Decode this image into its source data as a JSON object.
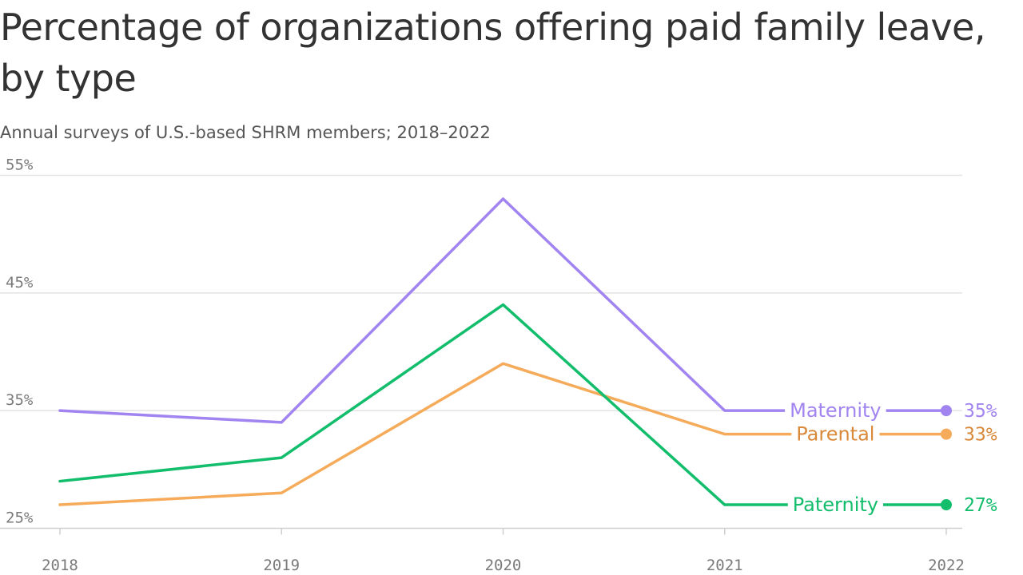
{
  "chart_data": {
    "type": "line",
    "title": "Percentage of organizations offering paid family leave, by type",
    "subtitle": "Annual surveys of U.S.-based SHRM members; 2018–2022",
    "xlabel": "",
    "ylabel": "",
    "categories": [
      "2018",
      "2019",
      "2020",
      "2021",
      "2022"
    ],
    "ylim": [
      25,
      55
    ],
    "yticks": [
      25,
      35,
      45,
      55
    ],
    "ytick_labels": [
      "25%",
      "35%",
      "45%",
      "55%"
    ],
    "grid": true,
    "series": [
      {
        "name": "Maternity",
        "color": "#a184f0",
        "label_color": "#a184f0",
        "values": [
          35,
          34,
          53,
          35,
          35
        ],
        "end_label": "35%"
      },
      {
        "name": "Parental",
        "color": "#f5ab5a",
        "label_color": "#d9893a",
        "values": [
          27,
          28,
          39,
          33,
          33
        ],
        "end_label": "33%"
      },
      {
        "name": "Paternity",
        "color": "#12bd6c",
        "label_color": "#12bd6c",
        "values": [
          29,
          31,
          44,
          27,
          27
        ],
        "end_label": "27%"
      }
    ]
  }
}
